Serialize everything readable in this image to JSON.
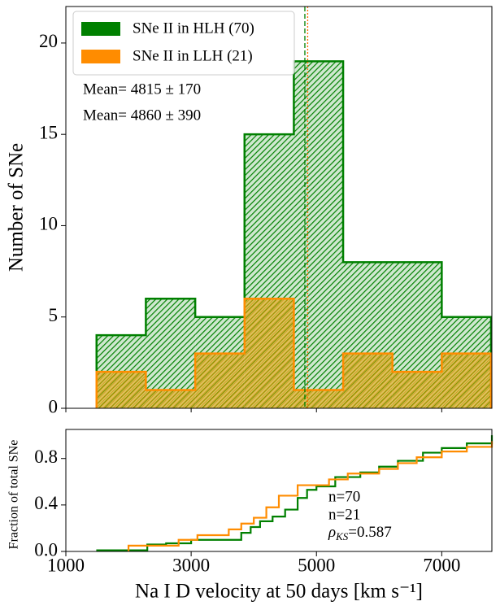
{
  "chart_data": [
    {
      "type": "histogram",
      "ylabel": "Number of SNe",
      "bins": [
        1490,
        2277,
        3065,
        3852,
        4639,
        5426,
        6213,
        7000,
        7787
      ],
      "series": [
        {
          "name": "SNe II in HLH (70)",
          "color": "#008000",
          "values": [
            4,
            6,
            5,
            15,
            19,
            8,
            8,
            5
          ]
        },
        {
          "name": "SNe II in LLH (21)",
          "color": "#ff8c00",
          "values": [
            2,
            1,
            3,
            6,
            1,
            3,
            2,
            3
          ]
        }
      ],
      "mean_lines": [
        {
          "value": 4815,
          "color": "#008000",
          "dash": "6,3"
        },
        {
          "value": 4860,
          "color": "#ff6a00",
          "dash": "2,2"
        }
      ],
      "annotations": [
        {
          "text": "Mean= 4815 ± 170",
          "color": "#008000"
        },
        {
          "text": "Mean= 4860 ± 390",
          "color": "#ff6a1a"
        }
      ],
      "xlim": [
        1000,
        7800
      ],
      "ylim": [
        0,
        22
      ],
      "yticks": [
        0,
        5,
        10,
        15,
        20
      ],
      "legend": "upper left"
    },
    {
      "type": "step",
      "ylabel": "Fraction of total SNe",
      "xlabel": "Na I D velocity at 50 days [km s⁻¹]",
      "series": [
        {
          "name": "n=70",
          "color": "#008000",
          "x": [
            1500,
            2300,
            2600,
            3000,
            3800,
            3950,
            4100,
            4300,
            4500,
            4700,
            4850,
            5000,
            5300,
            5700,
            6000,
            6300,
            6700,
            7000,
            7400,
            7800
          ],
          "values": [
            0.01,
            0.06,
            0.07,
            0.1,
            0.16,
            0.21,
            0.26,
            0.3,
            0.36,
            0.46,
            0.53,
            0.56,
            0.64,
            0.68,
            0.73,
            0.78,
            0.85,
            0.89,
            0.93,
            1.0
          ]
        },
        {
          "name": "n=21",
          "color": "#ff8c00",
          "x": [
            2000,
            2800,
            3100,
            3600,
            3800,
            4000,
            4200,
            4400,
            4700,
            5200,
            5500,
            6000,
            6300,
            6600,
            7000,
            7400,
            7800
          ],
          "values": [
            0.05,
            0.1,
            0.14,
            0.19,
            0.24,
            0.29,
            0.38,
            0.48,
            0.57,
            0.62,
            0.67,
            0.71,
            0.76,
            0.81,
            0.86,
            0.9,
            0.95
          ]
        }
      ],
      "series_label_colors": [
        "#2e9b2e",
        "#ff6a1a"
      ],
      "stat": {
        "symbol": "ρ",
        "subscript": "KS",
        "text": "=0.587"
      },
      "xlim": [
        1000,
        7800
      ],
      "ylim": [
        0,
        1.05
      ],
      "xticks": [
        1000,
        3000,
        5000,
        7000
      ],
      "yticks": [
        {
          "value": 0.0,
          "label": "0.0"
        },
        {
          "value": 0.4,
          "label": "0.4"
        },
        {
          "value": 0.8,
          "label": "0.8"
        }
      ]
    }
  ]
}
